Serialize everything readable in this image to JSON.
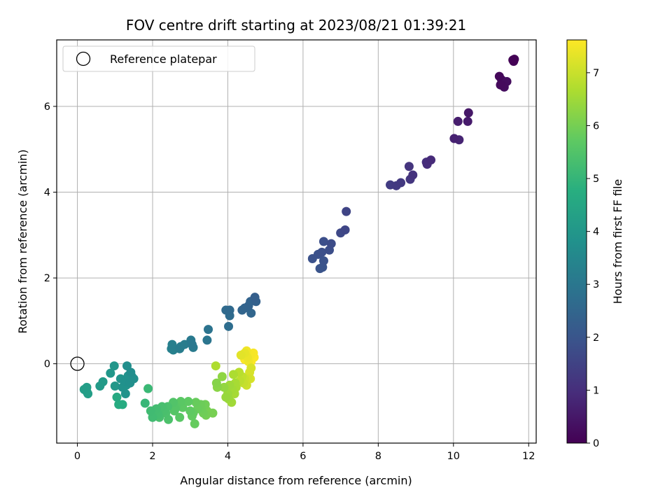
{
  "chart_data": {
    "type": "scatter",
    "title": "FOV centre drift starting at 2023/08/21 01:39:21",
    "xlabel": "Angular distance from reference (arcmin)",
    "ylabel": "Rotation from reference (arcmin)",
    "xlim": [
      -0.55,
      12.2
    ],
    "ylim": [
      -1.85,
      7.55
    ],
    "xticks": [
      0,
      2,
      4,
      6,
      8,
      10,
      12
    ],
    "yticks": [
      0,
      2,
      4,
      6
    ],
    "grid": true,
    "colormap": "viridis",
    "colorbar": {
      "label": "Hours from first FF file",
      "ticks": [
        0,
        1,
        2,
        3,
        4,
        5,
        6,
        7
      ],
      "range": [
        0,
        7.62
      ]
    },
    "legend": {
      "placement": "top-left",
      "entries": [
        {
          "label": "Reference platepar",
          "marker": "open-circle"
        }
      ]
    },
    "reference_point": {
      "x": 0,
      "y": 0
    },
    "points": [
      {
        "x": 11.62,
        "y": 7.1,
        "c": 0.02
      },
      {
        "x": 11.6,
        "y": 7.05,
        "c": 0.05
      },
      {
        "x": 11.58,
        "y": 7.08,
        "c": 0.08
      },
      {
        "x": 11.22,
        "y": 6.7,
        "c": 0.15
      },
      {
        "x": 11.25,
        "y": 6.5,
        "c": 0.2
      },
      {
        "x": 11.32,
        "y": 6.48,
        "c": 0.22
      },
      {
        "x": 11.42,
        "y": 6.58,
        "c": 0.25
      },
      {
        "x": 11.35,
        "y": 6.45,
        "c": 0.28
      },
      {
        "x": 11.28,
        "y": 6.62,
        "c": 0.3
      },
      {
        "x": 10.4,
        "y": 5.85,
        "c": 0.5
      },
      {
        "x": 10.38,
        "y": 5.65,
        "c": 0.55
      },
      {
        "x": 10.12,
        "y": 5.65,
        "c": 0.6
      },
      {
        "x": 10.02,
        "y": 5.25,
        "c": 0.7
      },
      {
        "x": 10.15,
        "y": 5.22,
        "c": 0.75
      },
      {
        "x": 9.4,
        "y": 4.75,
        "c": 0.9
      },
      {
        "x": 9.3,
        "y": 4.65,
        "c": 0.95
      },
      {
        "x": 9.28,
        "y": 4.7,
        "c": 1.0
      },
      {
        "x": 8.92,
        "y": 4.4,
        "c": 1.1
      },
      {
        "x": 8.82,
        "y": 4.6,
        "c": 1.15
      },
      {
        "x": 8.85,
        "y": 4.3,
        "c": 1.18
      },
      {
        "x": 8.6,
        "y": 4.22,
        "c": 1.25
      },
      {
        "x": 8.48,
        "y": 4.15,
        "c": 1.3
      },
      {
        "x": 8.32,
        "y": 4.17,
        "c": 1.35
      },
      {
        "x": 7.15,
        "y": 3.55,
        "c": 1.55
      },
      {
        "x": 7.12,
        "y": 3.12,
        "c": 1.6
      },
      {
        "x": 7.0,
        "y": 3.05,
        "c": 1.65
      },
      {
        "x": 6.75,
        "y": 2.8,
        "c": 1.75
      },
      {
        "x": 6.7,
        "y": 2.65,
        "c": 1.8
      },
      {
        "x": 6.55,
        "y": 2.85,
        "c": 1.82
      },
      {
        "x": 6.5,
        "y": 2.6,
        "c": 1.85
      },
      {
        "x": 6.4,
        "y": 2.55,
        "c": 1.88
      },
      {
        "x": 6.25,
        "y": 2.45,
        "c": 1.9
      },
      {
        "x": 6.55,
        "y": 2.4,
        "c": 1.92
      },
      {
        "x": 6.45,
        "y": 2.22,
        "c": 1.95
      },
      {
        "x": 6.52,
        "y": 2.25,
        "c": 1.97
      },
      {
        "x": 4.72,
        "y": 1.55,
        "c": 2.3
      },
      {
        "x": 4.75,
        "y": 1.45,
        "c": 2.35
      },
      {
        "x": 4.6,
        "y": 1.45,
        "c": 2.4
      },
      {
        "x": 4.55,
        "y": 1.35,
        "c": 2.42
      },
      {
        "x": 4.45,
        "y": 1.3,
        "c": 2.45
      },
      {
        "x": 4.38,
        "y": 1.25,
        "c": 2.48
      },
      {
        "x": 4.62,
        "y": 1.18,
        "c": 2.5
      },
      {
        "x": 4.05,
        "y": 1.25,
        "c": 2.6
      },
      {
        "x": 3.95,
        "y": 1.25,
        "c": 2.62
      },
      {
        "x": 4.05,
        "y": 1.12,
        "c": 2.65
      },
      {
        "x": 4.02,
        "y": 0.87,
        "c": 2.7
      },
      {
        "x": 3.48,
        "y": 0.8,
        "c": 2.9
      },
      {
        "x": 3.45,
        "y": 0.55,
        "c": 2.95
      },
      {
        "x": 3.05,
        "y": 0.45,
        "c": 3.05
      },
      {
        "x": 3.02,
        "y": 0.55,
        "c": 3.08
      },
      {
        "x": 3.08,
        "y": 0.38,
        "c": 3.1
      },
      {
        "x": 2.85,
        "y": 0.45,
        "c": 3.15
      },
      {
        "x": 2.75,
        "y": 0.4,
        "c": 3.18
      },
      {
        "x": 2.72,
        "y": 0.35,
        "c": 3.2
      },
      {
        "x": 2.52,
        "y": 0.45,
        "c": 3.25
      },
      {
        "x": 2.5,
        "y": 0.35,
        "c": 3.28
      },
      {
        "x": 2.55,
        "y": 0.32,
        "c": 3.3
      },
      {
        "x": 1.42,
        "y": -0.2,
        "c": 3.7
      },
      {
        "x": 1.32,
        "y": -0.05,
        "c": 3.72
      },
      {
        "x": 1.5,
        "y": -0.35,
        "c": 3.75
      },
      {
        "x": 1.4,
        "y": -0.45,
        "c": 3.78
      },
      {
        "x": 1.35,
        "y": -0.28,
        "c": 3.8
      },
      {
        "x": 1.25,
        "y": -0.4,
        "c": 3.82
      },
      {
        "x": 1.2,
        "y": -0.55,
        "c": 3.85
      },
      {
        "x": 1.28,
        "y": -0.7,
        "c": 3.88
      },
      {
        "x": 1.45,
        "y": -0.3,
        "c": 3.9
      },
      {
        "x": 1.15,
        "y": -0.35,
        "c": 3.92
      },
      {
        "x": 1.3,
        "y": -0.5,
        "c": 3.95
      },
      {
        "x": 0.98,
        "y": -0.05,
        "c": 3.98
      },
      {
        "x": 0.88,
        "y": -0.22,
        "c": 4.0
      },
      {
        "x": 1.0,
        "y": -0.52,
        "c": 4.02
      },
      {
        "x": 0.68,
        "y": -0.42,
        "c": 4.1
      },
      {
        "x": 0.6,
        "y": -0.52,
        "c": 4.12
      },
      {
        "x": 0.25,
        "y": -0.55,
        "c": 4.2
      },
      {
        "x": 0.18,
        "y": -0.6,
        "c": 4.22
      },
      {
        "x": 0.28,
        "y": -0.7,
        "c": 4.24
      },
      {
        "x": 0.25,
        "y": -0.65,
        "c": 4.25
      },
      {
        "x": 1.05,
        "y": -0.78,
        "c": 4.6
      },
      {
        "x": 1.1,
        "y": -0.95,
        "c": 4.65
      },
      {
        "x": 1.2,
        "y": -0.95,
        "c": 4.68
      },
      {
        "x": 1.8,
        "y": -0.92,
        "c": 5.05
      },
      {
        "x": 1.88,
        "y": -0.58,
        "c": 5.1
      },
      {
        "x": 1.95,
        "y": -1.1,
        "c": 5.2
      },
      {
        "x": 2.0,
        "y": -1.25,
        "c": 5.22
      },
      {
        "x": 2.1,
        "y": -1.05,
        "c": 5.25
      },
      {
        "x": 2.15,
        "y": -1.18,
        "c": 5.28
      },
      {
        "x": 2.05,
        "y": -1.2,
        "c": 5.3
      },
      {
        "x": 2.25,
        "y": -1.0,
        "c": 5.32
      },
      {
        "x": 2.18,
        "y": -1.25,
        "c": 5.34
      },
      {
        "x": 2.3,
        "y": -1.1,
        "c": 5.36
      },
      {
        "x": 2.4,
        "y": -1.0,
        "c": 5.38
      },
      {
        "x": 2.35,
        "y": -1.15,
        "c": 5.4
      },
      {
        "x": 2.42,
        "y": -1.3,
        "c": 5.42
      },
      {
        "x": 2.55,
        "y": -0.9,
        "c": 5.5
      },
      {
        "x": 2.6,
        "y": -1.05,
        "c": 5.55
      },
      {
        "x": 2.58,
        "y": -1.1,
        "c": 5.58
      },
      {
        "x": 2.62,
        "y": -1.0,
        "c": 5.6
      },
      {
        "x": 2.72,
        "y": -1.25,
        "c": 5.62
      },
      {
        "x": 2.75,
        "y": -0.88,
        "c": 5.65
      },
      {
        "x": 2.8,
        "y": -1.02,
        "c": 5.68
      },
      {
        "x": 2.95,
        "y": -0.88,
        "c": 5.7
      },
      {
        "x": 3.0,
        "y": -1.1,
        "c": 5.72
      },
      {
        "x": 3.05,
        "y": -1.22,
        "c": 5.75
      },
      {
        "x": 3.08,
        "y": -1.15,
        "c": 5.78
      },
      {
        "x": 3.12,
        "y": -1.4,
        "c": 5.8
      },
      {
        "x": 3.15,
        "y": -0.9,
        "c": 5.82
      },
      {
        "x": 3.2,
        "y": -1.05,
        "c": 5.85
      },
      {
        "x": 3.28,
        "y": -0.95,
        "c": 5.88
      },
      {
        "x": 3.3,
        "y": -1.05,
        "c": 5.9
      },
      {
        "x": 3.35,
        "y": -1.15,
        "c": 5.92
      },
      {
        "x": 3.4,
        "y": -0.95,
        "c": 5.95
      },
      {
        "x": 3.42,
        "y": -1.2,
        "c": 5.98
      },
      {
        "x": 3.45,
        "y": -1.1,
        "c": 6.0
      },
      {
        "x": 3.6,
        "y": -1.15,
        "c": 6.02
      },
      {
        "x": 3.7,
        "y": -0.45,
        "c": 6.2
      },
      {
        "x": 3.72,
        "y": -0.55,
        "c": 6.25
      },
      {
        "x": 3.85,
        "y": -0.3,
        "c": 6.3
      },
      {
        "x": 3.9,
        "y": -0.55,
        "c": 6.35
      },
      {
        "x": 3.95,
        "y": -0.78,
        "c": 6.4
      },
      {
        "x": 4.0,
        "y": -0.7,
        "c": 6.45
      },
      {
        "x": 4.02,
        "y": -0.82,
        "c": 6.48
      },
      {
        "x": 4.05,
        "y": -0.5,
        "c": 6.5
      },
      {
        "x": 4.1,
        "y": -0.9,
        "c": 6.52
      },
      {
        "x": 4.12,
        "y": -0.6,
        "c": 6.55
      },
      {
        "x": 4.18,
        "y": -0.7,
        "c": 6.58
      },
      {
        "x": 4.2,
        "y": -0.45,
        "c": 6.6
      },
      {
        "x": 4.22,
        "y": -0.55,
        "c": 6.62
      },
      {
        "x": 4.15,
        "y": -0.25,
        "c": 6.65
      },
      {
        "x": 3.68,
        "y": -0.05,
        "c": 6.68
      },
      {
        "x": 4.3,
        "y": -0.2,
        "c": 6.8
      },
      {
        "x": 4.32,
        "y": -0.4,
        "c": 6.85
      },
      {
        "x": 4.38,
        "y": -0.3,
        "c": 6.9
      },
      {
        "x": 4.42,
        "y": -0.45,
        "c": 6.95
      },
      {
        "x": 4.45,
        "y": -0.35,
        "c": 7.0
      },
      {
        "x": 4.5,
        "y": -0.5,
        "c": 7.05
      },
      {
        "x": 4.55,
        "y": -0.35,
        "c": 7.1
      },
      {
        "x": 4.58,
        "y": -0.2,
        "c": 7.15
      },
      {
        "x": 4.62,
        "y": -0.1,
        "c": 7.18
      },
      {
        "x": 4.6,
        "y": -0.35,
        "c": 7.2
      },
      {
        "x": 4.35,
        "y": 0.2,
        "c": 7.3
      },
      {
        "x": 4.45,
        "y": 0.25,
        "c": 7.35
      },
      {
        "x": 4.52,
        "y": 0.15,
        "c": 7.4
      },
      {
        "x": 4.55,
        "y": 0.05,
        "c": 7.45
      },
      {
        "x": 4.5,
        "y": 0.3,
        "c": 7.48
      },
      {
        "x": 4.6,
        "y": 0.2,
        "c": 7.52
      },
      {
        "x": 4.68,
        "y": 0.25,
        "c": 7.55
      },
      {
        "x": 4.7,
        "y": 0.15,
        "c": 7.58
      },
      {
        "x": 4.45,
        "y": 0.1,
        "c": 7.6
      },
      {
        "x": 4.62,
        "y": 0.05,
        "c": 7.62
      }
    ]
  }
}
